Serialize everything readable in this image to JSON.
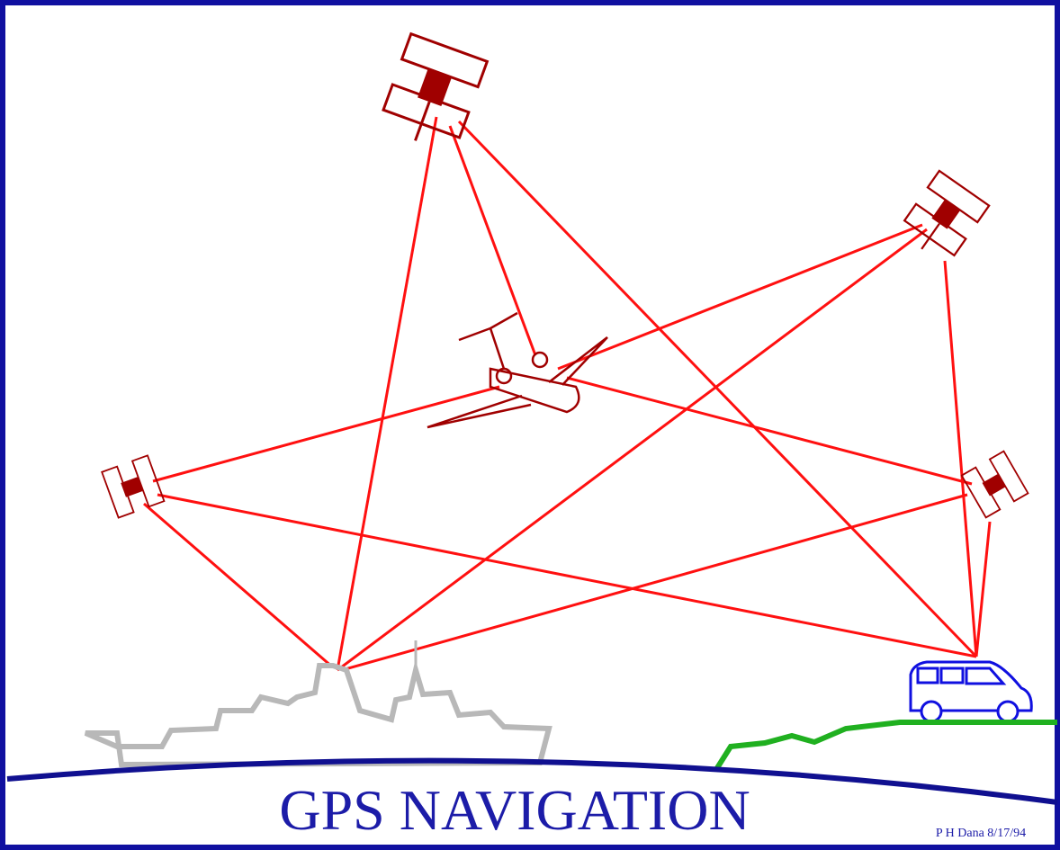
{
  "title": "GPS NAVIGATION",
  "credit": "P H Dana 8/17/94"
}
